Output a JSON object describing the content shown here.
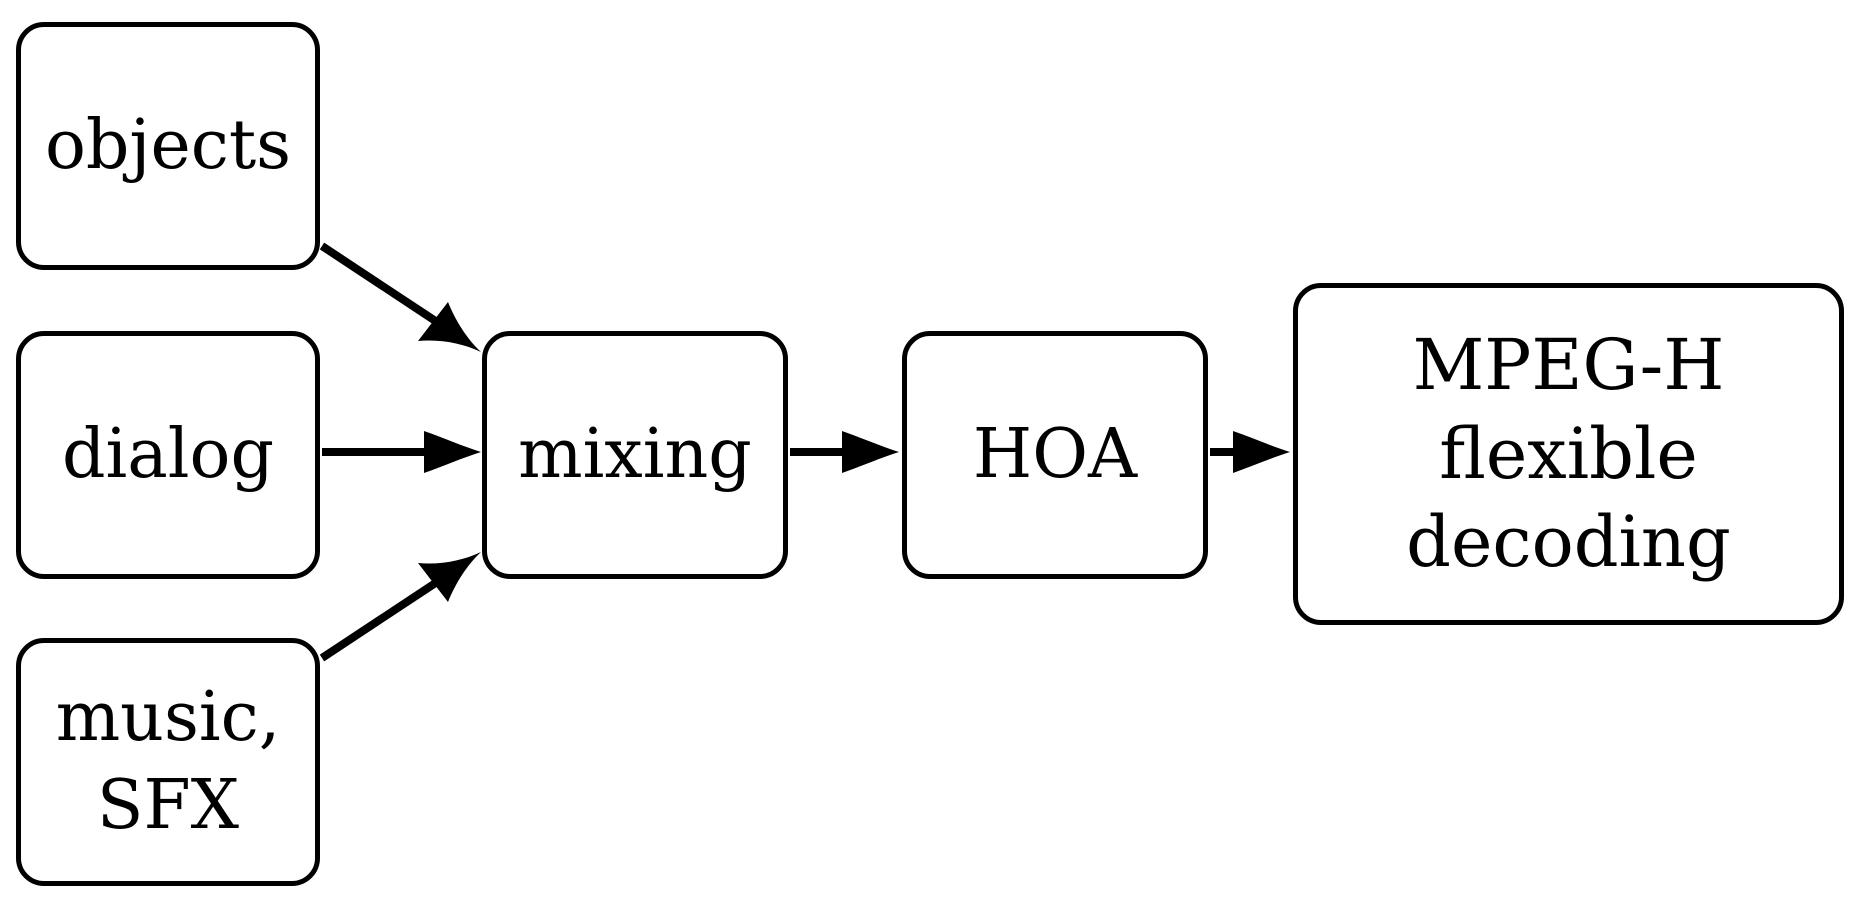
{
  "nodes": {
    "objects": {
      "label": "objects"
    },
    "dialog": {
      "label": "dialog"
    },
    "music": {
      "line1": "music,",
      "line2": "SFX"
    },
    "mixing": {
      "label": "mixing"
    },
    "hoa": {
      "label": "HOA"
    },
    "mpegh": {
      "line1": "MPEG-H",
      "line2": "flexible",
      "line3": "decoding"
    }
  },
  "edges": [
    {
      "from": "objects",
      "to": "mixing"
    },
    {
      "from": "dialog",
      "to": "mixing"
    },
    {
      "from": "music",
      "to": "mixing"
    },
    {
      "from": "mixing",
      "to": "hoa"
    },
    {
      "from": "hoa",
      "to": "mpegh"
    }
  ],
  "colors": {
    "stroke": "#000000",
    "fill": "#ffffff"
  }
}
